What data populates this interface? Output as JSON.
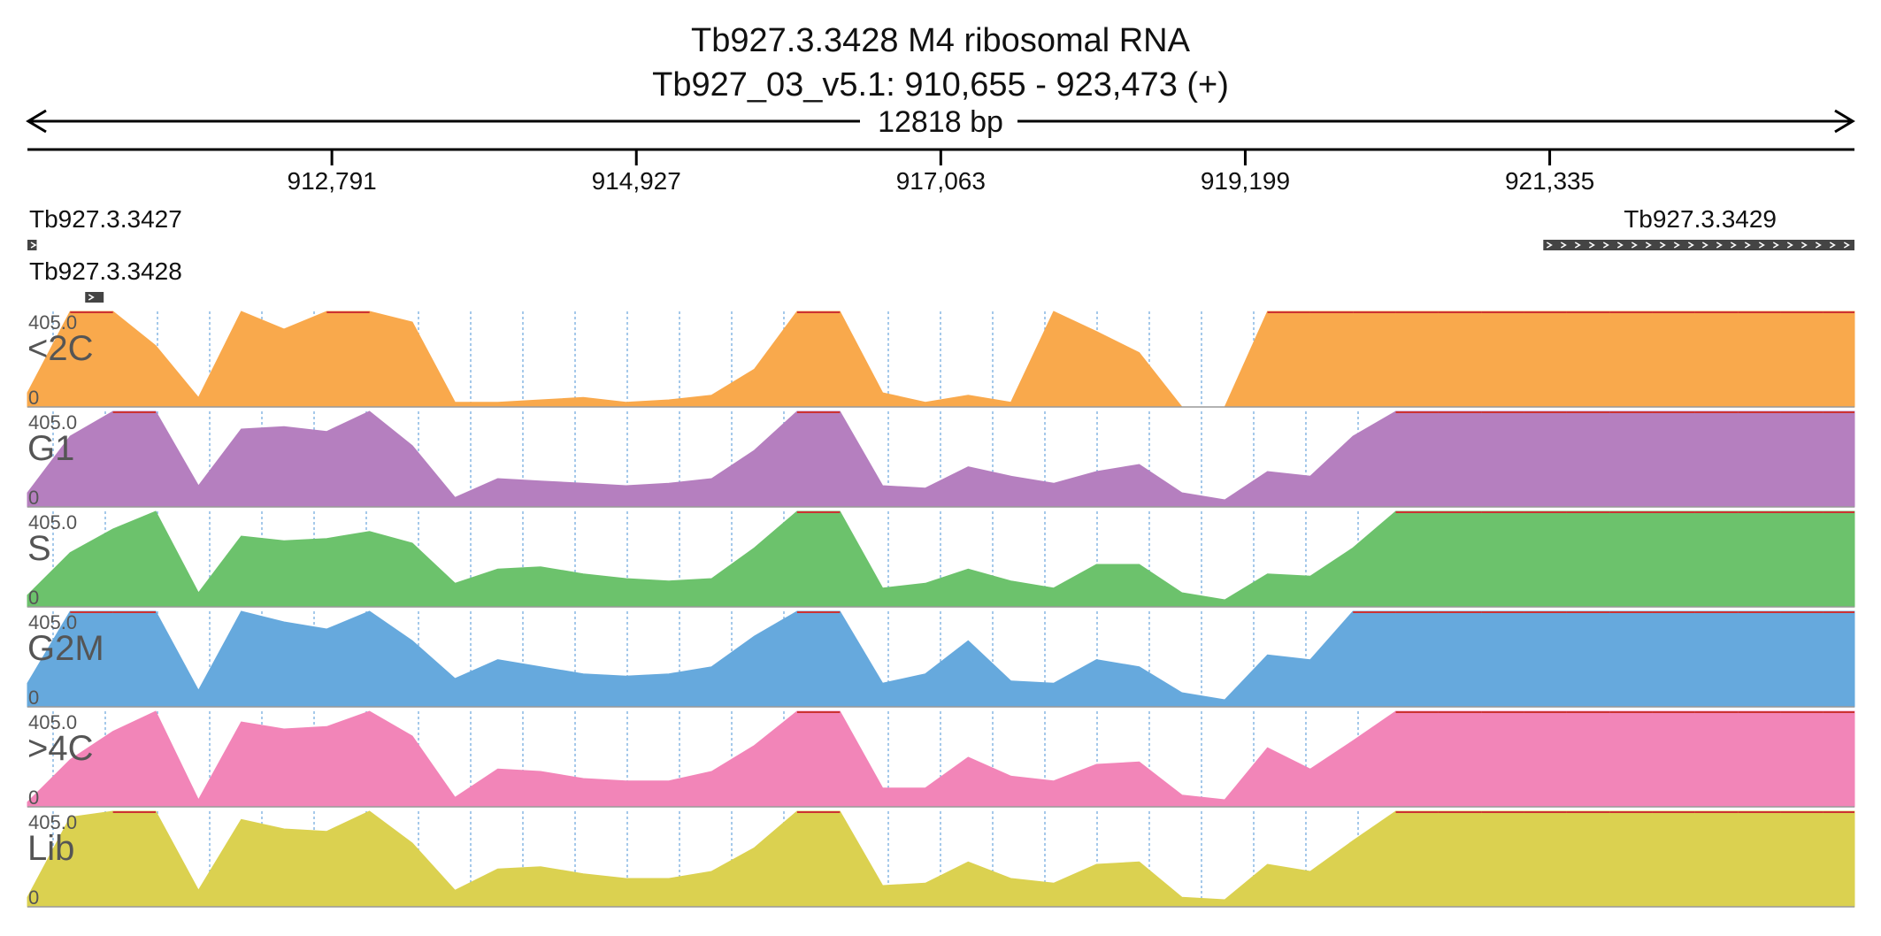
{
  "header": {
    "title_line1": "Tb927.3.3428  M4 ribosomal RNA",
    "title_line2": "Tb927_03_v5.1: 910,655 - 923,473 (+)",
    "span_label": "12818 bp"
  },
  "ruler": {
    "start": 910655,
    "end": 923473,
    "ticks": [
      {
        "pos": 912791,
        "label": "912,791"
      },
      {
        "pos": 914927,
        "label": "914,927"
      },
      {
        "pos": 917063,
        "label": "917,063"
      },
      {
        "pos": 919199,
        "label": "919,199"
      },
      {
        "pos": 921335,
        "label": "921,335"
      }
    ]
  },
  "genes": [
    {
      "id": "Tb927.3.3427",
      "start": 910655,
      "end": 910720,
      "strand": "+"
    },
    {
      "id": "Tb927.3.3428",
      "start": 911060,
      "end": 911190,
      "strand": "+"
    },
    {
      "id": "Tb927.3.3429",
      "start": 921290,
      "end": 923473,
      "strand": "+"
    }
  ],
  "colors": {
    "<2C": "#f9a94c",
    "G1": "#b57fbf",
    "S": "#6cc26c",
    "G2M": "#66a9dd",
    ">4C": "#f285b8",
    "Lib": "#dbd150",
    "cap_line": "#cc3333",
    "grid": "#7fb2e0"
  },
  "chart_data": {
    "type": "area",
    "x_unit": "genomic position (bp)",
    "xlim": [
      910655,
      923473
    ],
    "ylim": [
      0,
      405.0
    ],
    "ymax_label": "405.0",
    "ymin_label": "0",
    "x": [
      910655,
      910955,
      911255,
      911555,
      911855,
      912155,
      912455,
      912755,
      913055,
      913355,
      913655,
      913955,
      914255,
      914555,
      914855,
      915155,
      915455,
      915755,
      916055,
      916355,
      916655,
      916955,
      917255,
      917555,
      917855,
      918155,
      918455,
      918755,
      919055,
      919355,
      919655,
      919955,
      920255,
      920555,
      920855,
      921155,
      921455,
      921755,
      922055,
      922355,
      922655,
      922955,
      923255,
      923473
    ],
    "series": [
      {
        "name": "<2C",
        "values": [
          60,
          405,
          405,
          260,
          40,
          405,
          330,
          405,
          405,
          360,
          20,
          20,
          30,
          40,
          20,
          30,
          50,
          160,
          405,
          405,
          60,
          20,
          50,
          20,
          405,
          320,
          230,
          0,
          0,
          405,
          405,
          405,
          405,
          405,
          405,
          405,
          405,
          405,
          405,
          405,
          405,
          405,
          405,
          405
        ]
      },
      {
        "name": "G1",
        "values": [
          60,
          300,
          405,
          405,
          90,
          330,
          340,
          320,
          405,
          260,
          40,
          120,
          110,
          100,
          90,
          100,
          120,
          240,
          405,
          405,
          90,
          80,
          170,
          130,
          100,
          150,
          180,
          60,
          30,
          150,
          130,
          300,
          405,
          405,
          405,
          405,
          405,
          405,
          405,
          405,
          405,
          405,
          405,
          405
        ]
      },
      {
        "name": "S",
        "values": [
          50,
          230,
          330,
          405,
          60,
          300,
          280,
          290,
          320,
          270,
          100,
          160,
          170,
          140,
          120,
          110,
          120,
          250,
          405,
          405,
          80,
          100,
          160,
          110,
          80,
          180,
          180,
          60,
          30,
          140,
          130,
          250,
          405,
          405,
          405,
          405,
          405,
          405,
          405,
          405,
          405,
          405,
          405,
          405
        ]
      },
      {
        "name": "G2M",
        "values": [
          100,
          405,
          405,
          405,
          70,
          405,
          360,
          330,
          405,
          280,
          120,
          200,
          170,
          140,
          130,
          140,
          170,
          300,
          405,
          405,
          100,
          140,
          280,
          110,
          100,
          200,
          170,
          60,
          30,
          220,
          200,
          405,
          405,
          405,
          405,
          405,
          405,
          405,
          405,
          405,
          405,
          405,
          405,
          405
        ]
      },
      {
        "name": ">4C",
        "values": [
          20,
          200,
          320,
          405,
          30,
          360,
          330,
          340,
          405,
          300,
          40,
          160,
          150,
          120,
          110,
          110,
          150,
          260,
          405,
          405,
          80,
          80,
          210,
          130,
          110,
          180,
          190,
          50,
          30,
          250,
          160,
          280,
          405,
          405,
          405,
          405,
          405,
          405,
          405,
          405,
          405,
          405,
          405,
          405
        ]
      },
      {
        "name": "Lib",
        "values": [
          40,
          380,
          405,
          405,
          70,
          370,
          330,
          320,
          405,
          270,
          70,
          160,
          170,
          140,
          120,
          120,
          150,
          250,
          405,
          405,
          90,
          100,
          190,
          120,
          100,
          180,
          190,
          40,
          30,
          180,
          150,
          280,
          405,
          405,
          405,
          405,
          405,
          405,
          405,
          405,
          405,
          405,
          405,
          405
        ]
      }
    ]
  }
}
